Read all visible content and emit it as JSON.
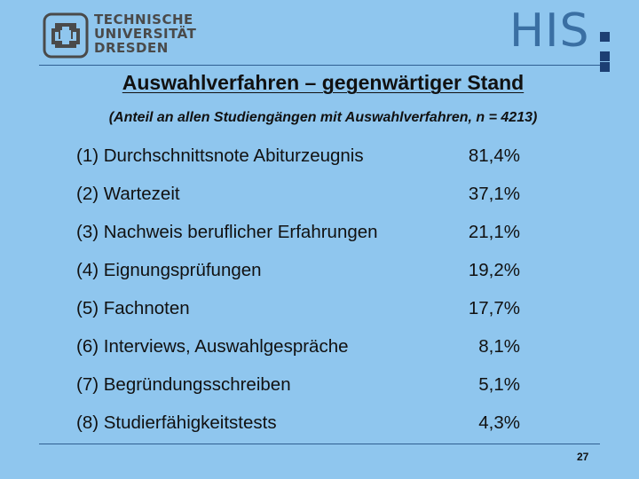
{
  "header": {
    "tud_logo_lines": [
      "TECHNISCHE",
      "UNIVERSITÄT",
      "DRESDEN"
    ],
    "his_logo_text": "HIS"
  },
  "slide": {
    "title": "Auswahlverfahren – gegenwärtiger Stand",
    "subtitle": "(Anteil an allen Studiengängen mit Auswahlverfahren, n = 4213)",
    "page_number": "27"
  },
  "methods": [
    {
      "label": "(1) Durchschnittsnote Abiturzeugnis",
      "value": "81,4%"
    },
    {
      "label": "(2) Wartezeit",
      "value": "37,1%"
    },
    {
      "label": "(3) Nachweis beruflicher Erfahrungen",
      "value": "21,1%"
    },
    {
      "label": "(4) Eignungsprüfungen",
      "value": "19,2%"
    },
    {
      "label": "(5) Fachnoten",
      "value": "17,7%"
    },
    {
      "label": "(6) Interviews, Auswahlgespräche",
      "value": "8,1%"
    },
    {
      "label": "(7) Begründungsschreiben",
      "value": "5,1%"
    },
    {
      "label": "(8) Studierfähigkeitstests",
      "value": "4,3%"
    }
  ],
  "colors": {
    "background": "#8fc6ee",
    "rule": "#2f5f92",
    "his_text": "#3a6fa3",
    "his_dots": "#1d3f73",
    "tud_logo": "#4a4a4a"
  }
}
